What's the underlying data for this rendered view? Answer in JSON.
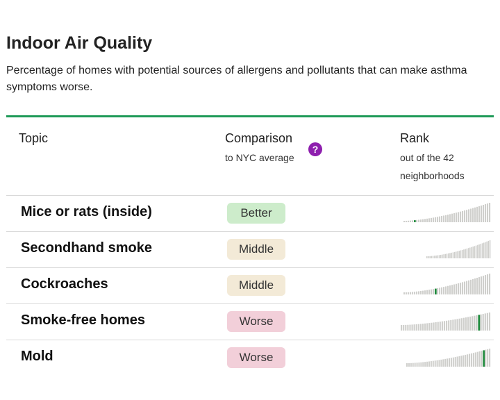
{
  "header": {
    "title": "Indoor Air Quality",
    "subtitle": "Percentage of homes with potential sources of allergens and pollutants that can make asthma symptoms worse."
  },
  "columns": {
    "topic": "Topic",
    "comparison": "Comparison",
    "comparison_sub": "to NYC average",
    "rank": "Rank",
    "rank_sub_line1": "out of the 42",
    "rank_sub_line2": "neighborhoods",
    "help_icon": "?"
  },
  "colors": {
    "accent_green": "#1e9a57",
    "highlight_bar": "#1e8a3c",
    "bar_gray": "#cfcfcc",
    "help_purple": "#8e1fae",
    "better": "#cdeccb",
    "middle": "#f3ead7",
    "worse": "#f2cfd9"
  },
  "rows": [
    {
      "topic": "Mice or rats (inside)",
      "comparison": "Better",
      "status": "better",
      "rank_position": 6
    },
    {
      "topic": "Secondhand smoke",
      "comparison": "Middle",
      "status": "middle",
      "rank_position": null
    },
    {
      "topic": "Cockroaches",
      "comparison": "Middle",
      "status": "middle",
      "rank_position": 16
    },
    {
      "topic": "Smoke-free homes",
      "comparison": "Worse",
      "status": "worse",
      "rank_position": 37
    },
    {
      "topic": "Mold",
      "comparison": "Worse",
      "status": "worse",
      "rank_position": 39
    }
  ],
  "neighborhood_count": 42
}
